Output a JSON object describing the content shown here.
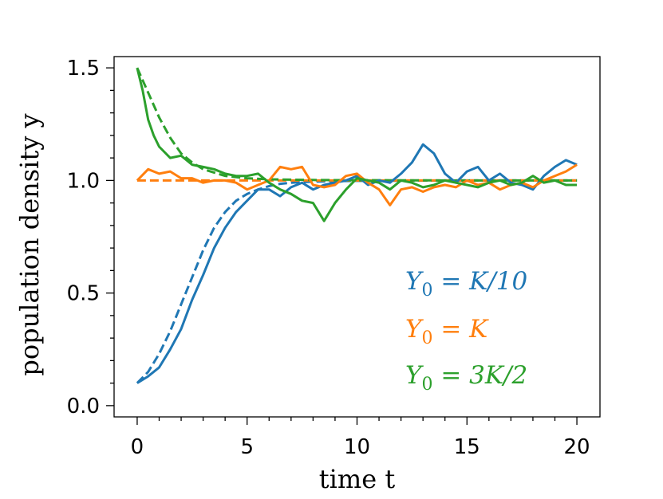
{
  "chart_data": {
    "type": "line",
    "xlabel": "time t",
    "ylabel": "population density y",
    "xlim": [
      -1.05,
      21.05
    ],
    "ylim": [
      -0.05,
      1.55
    ],
    "xticks": [
      0,
      5,
      10,
      15,
      20
    ],
    "xtick_labels": [
      "0",
      "5",
      "10",
      "15",
      "20"
    ],
    "yticks": [
      0.0,
      0.5,
      1.0,
      1.5
    ],
    "ytick_labels": [
      "0.0",
      "0.5",
      "1.0",
      "1.5"
    ],
    "grid": false,
    "legend_position": "lower-right",
    "colors": {
      "blue": "#1f77b4",
      "orange": "#ff7f0e",
      "green": "#2ca02c"
    },
    "series": [
      {
        "name": "Y0 = K/10",
        "label_parts": [
          "Y",
          "0",
          " = K/10"
        ],
        "color": "#1f77b4",
        "style": "solid",
        "x": [
          0,
          0.5,
          1,
          1.5,
          2,
          2.5,
          3,
          3.5,
          4,
          4.5,
          5,
          5.5,
          6,
          6.5,
          7,
          7.5,
          8,
          8.5,
          9,
          9.5,
          10,
          10.5,
          11,
          11.5,
          12,
          12.5,
          13,
          13.5,
          14,
          14.5,
          15,
          15.5,
          16,
          16.5,
          17,
          17.5,
          18,
          18.5,
          19,
          19.5,
          20
        ],
        "y": [
          0.1,
          0.13,
          0.17,
          0.25,
          0.34,
          0.47,
          0.58,
          0.7,
          0.79,
          0.86,
          0.91,
          0.96,
          0.96,
          0.93,
          0.97,
          0.99,
          0.96,
          0.98,
          0.99,
          1.0,
          1.02,
          0.98,
          1.0,
          0.99,
          1.03,
          1.08,
          1.16,
          1.12,
          1.03,
          0.99,
          1.04,
          1.06,
          1.0,
          1.03,
          0.99,
          0.98,
          0.96,
          1.02,
          1.06,
          1.09,
          1.07
        ]
      },
      {
        "name": "Y0 = K",
        "label_parts": [
          "Y",
          "0",
          " = K"
        ],
        "color": "#ff7f0e",
        "style": "solid",
        "x": [
          0,
          0.5,
          1,
          1.5,
          2,
          2.5,
          3,
          3.5,
          4,
          4.5,
          5,
          5.5,
          6,
          6.5,
          7,
          7.5,
          8,
          8.5,
          9,
          9.5,
          10,
          10.5,
          11,
          11.5,
          12,
          12.5,
          13,
          13.5,
          14,
          14.5,
          15,
          15.5,
          16,
          16.5,
          17,
          17.5,
          18,
          18.5,
          19,
          19.5,
          20
        ],
        "y": [
          1.0,
          1.05,
          1.03,
          1.04,
          1.01,
          1.01,
          0.99,
          1.0,
          1.0,
          0.99,
          0.96,
          0.98,
          1.0,
          1.06,
          1.05,
          1.06,
          0.98,
          0.97,
          0.98,
          1.02,
          1.03,
          0.99,
          0.96,
          0.89,
          0.96,
          0.97,
          0.95,
          0.97,
          0.98,
          0.97,
          1.0,
          0.98,
          0.99,
          0.96,
          0.98,
          0.99,
          0.97,
          1.0,
          1.02,
          1.04,
          1.07
        ]
      },
      {
        "name": "Y0 = 3K/2",
        "label_parts": [
          "Y",
          "0",
          " = 3K/2"
        ],
        "color": "#2ca02c",
        "style": "solid",
        "x": [
          0,
          0.25,
          0.5,
          0.75,
          1,
          1.5,
          2,
          2.5,
          3,
          3.5,
          4,
          4.5,
          5,
          5.5,
          6,
          6.5,
          7,
          7.5,
          8,
          8.5,
          9,
          9.5,
          10,
          10.5,
          11,
          11.5,
          12,
          12.5,
          13,
          13.5,
          14,
          14.5,
          15,
          15.5,
          16,
          16.5,
          17,
          17.5,
          18,
          18.5,
          19,
          19.5,
          20
        ],
        "y": [
          1.5,
          1.4,
          1.27,
          1.2,
          1.15,
          1.1,
          1.11,
          1.07,
          1.06,
          1.05,
          1.03,
          1.02,
          1.02,
          1.03,
          0.99,
          0.96,
          0.94,
          0.91,
          0.9,
          0.82,
          0.9,
          0.96,
          1.01,
          1.0,
          0.99,
          0.96,
          1.0,
          0.99,
          0.97,
          0.98,
          1.0,
          0.99,
          0.98,
          0.97,
          0.99,
          1.0,
          0.98,
          0.99,
          1.02,
          0.99,
          1.0,
          0.98,
          0.98
        ]
      }
    ],
    "expected_curves": [
      {
        "color": "#1f77b4",
        "style": "dashed",
        "x": [
          0,
          0.5,
          1,
          1.5,
          2,
          2.5,
          3,
          3.5,
          4,
          4.5,
          5,
          5.5,
          6,
          6.5,
          7,
          8,
          9,
          10,
          12,
          14,
          16,
          18,
          20
        ],
        "y": [
          0.1,
          0.15,
          0.23,
          0.33,
          0.45,
          0.57,
          0.69,
          0.79,
          0.86,
          0.91,
          0.94,
          0.96,
          0.975,
          0.985,
          0.99,
          0.995,
          0.997,
          0.998,
          0.999,
          1.0,
          1.0,
          1.0,
          1.0
        ]
      },
      {
        "color": "#ff7f0e",
        "style": "dashed",
        "x": [
          0,
          20
        ],
        "y": [
          1.0,
          1.0
        ]
      },
      {
        "color": "#2ca02c",
        "style": "dashed",
        "x": [
          0,
          0.5,
          1,
          1.5,
          2,
          2.5,
          3,
          4,
          5,
          6,
          8,
          10,
          15,
          20
        ],
        "y": [
          1.5,
          1.39,
          1.28,
          1.19,
          1.12,
          1.08,
          1.05,
          1.02,
          1.01,
          1.005,
          1.002,
          1.001,
          1.0,
          1.0
        ]
      }
    ]
  }
}
